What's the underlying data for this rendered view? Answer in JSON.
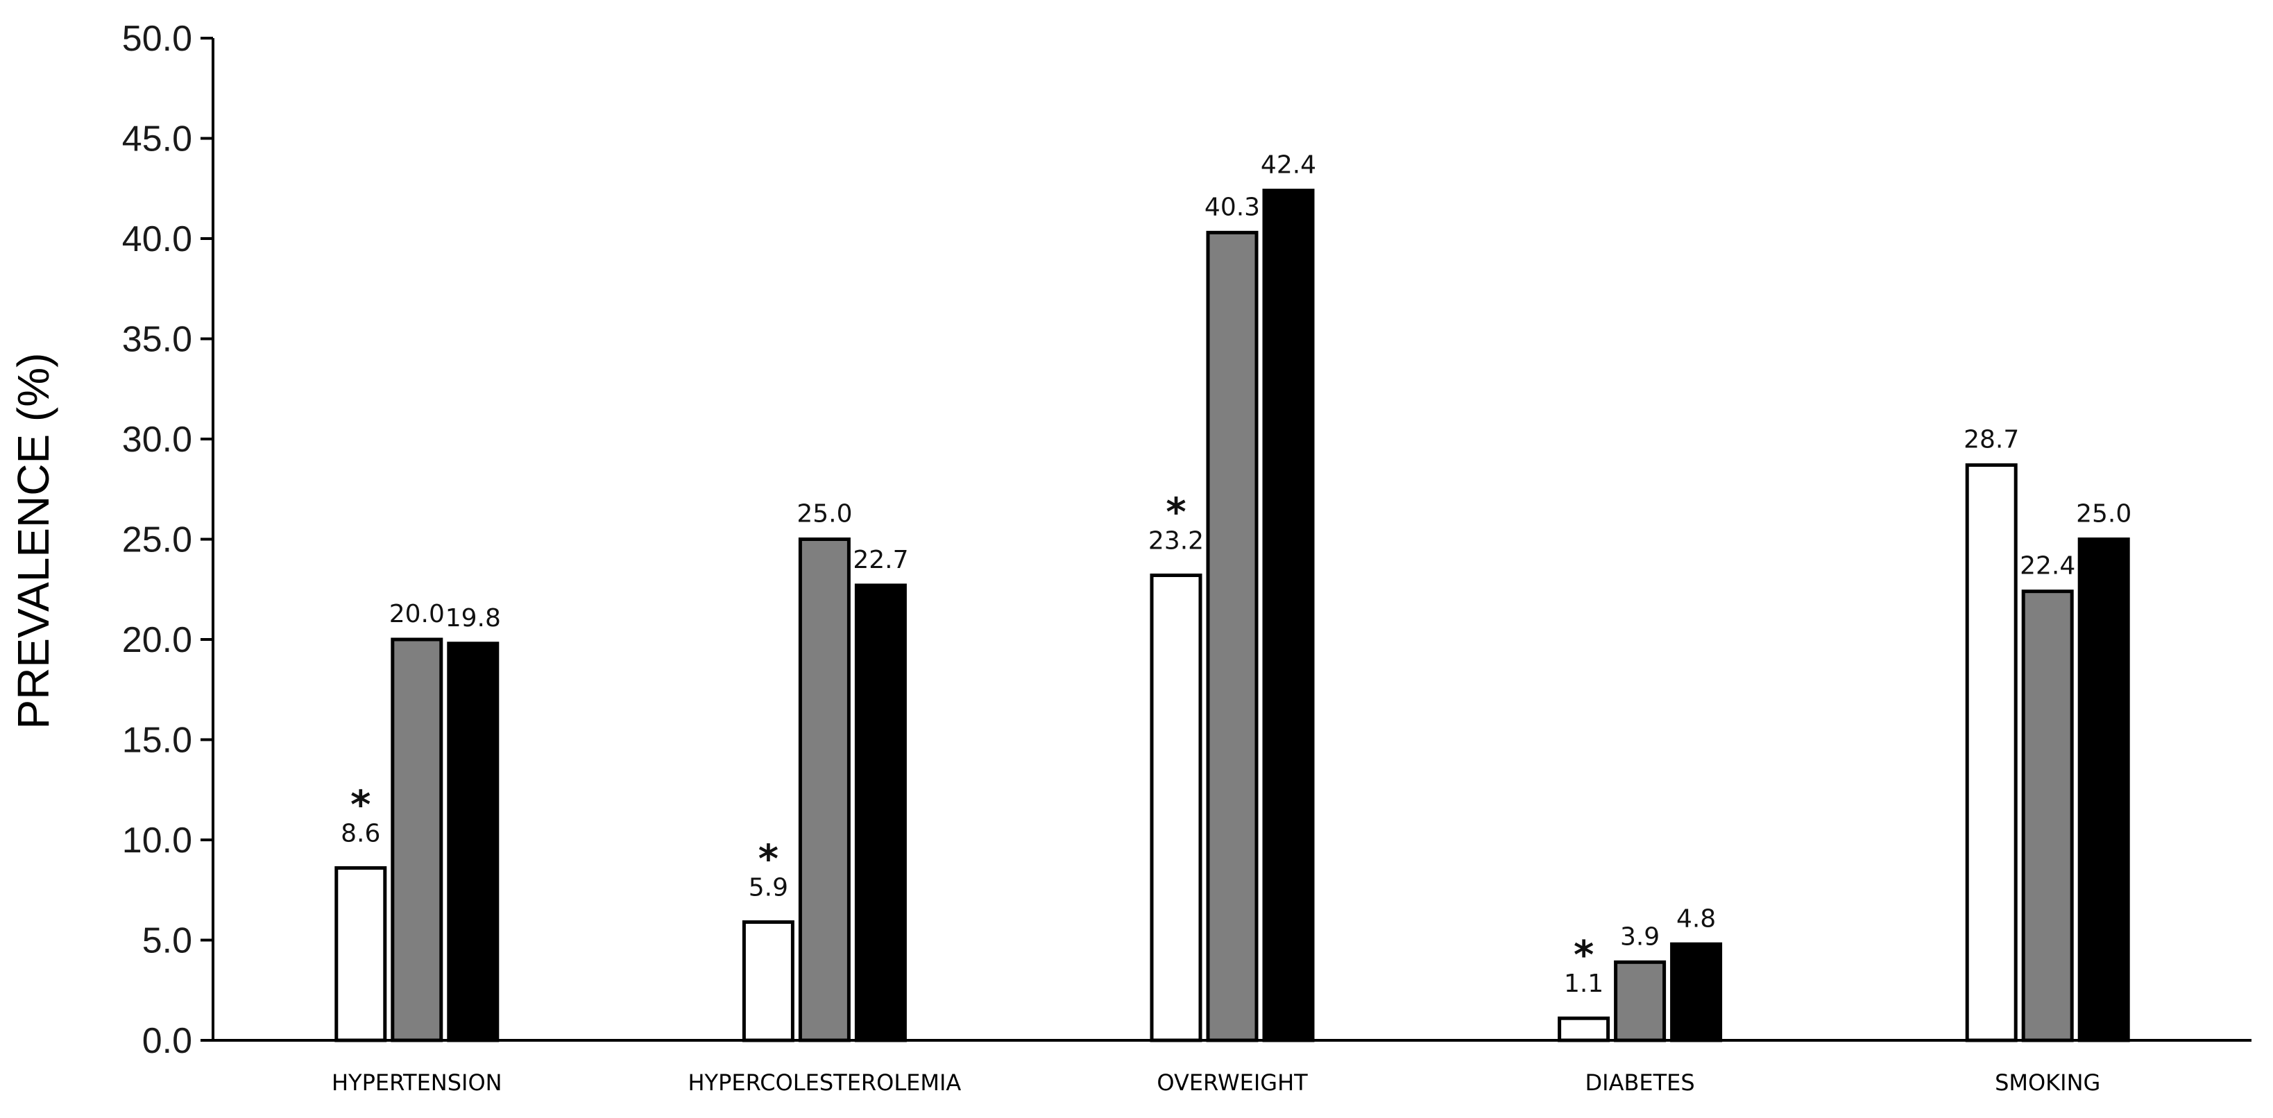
{
  "chart_data": {
    "type": "bar",
    "ylabel": "PREVALENCE (%)",
    "xlabel": "",
    "ylim": [
      0,
      50
    ],
    "ytick_step": 5,
    "ytick_labels": [
      "0.0",
      "5.0",
      "10.0",
      "15.0",
      "20.0",
      "25.0",
      "30.0",
      "35.0",
      "40.0",
      "45.0",
      "50.0"
    ],
    "grid": false,
    "categories": [
      "HYPERTENSION",
      "HYPERCOLESTEROLEMIA",
      "OVERWEIGHT",
      "DIABETES",
      "SMOKING"
    ],
    "series": [
      {
        "color": "#ffffff",
        "values": [
          8.6,
          5.9,
          23.2,
          1.1,
          28.7
        ],
        "labels": [
          "8.6",
          "5.9",
          "23.2",
          "1.1",
          "28.7"
        ]
      },
      {
        "color": "#7f7f7f",
        "values": [
          20.0,
          25.0,
          40.3,
          3.9,
          22.4
        ],
        "labels": [
          "20.0",
          "25.0",
          "40.3",
          "3.9",
          "22.4"
        ]
      },
      {
        "color": "#000000",
        "values": [
          19.8,
          22.7,
          42.4,
          4.8,
          25.0
        ],
        "labels": [
          "19.8",
          "22.7",
          "42.4",
          "4.8",
          "25.0"
        ]
      }
    ],
    "annotations": {
      "marker": "*",
      "series_index": 0,
      "categories": [
        "HYPERTENSION",
        "HYPERCOLESTEROLEMIA",
        "OVERWEIGHT",
        "DIABETES"
      ]
    }
  }
}
